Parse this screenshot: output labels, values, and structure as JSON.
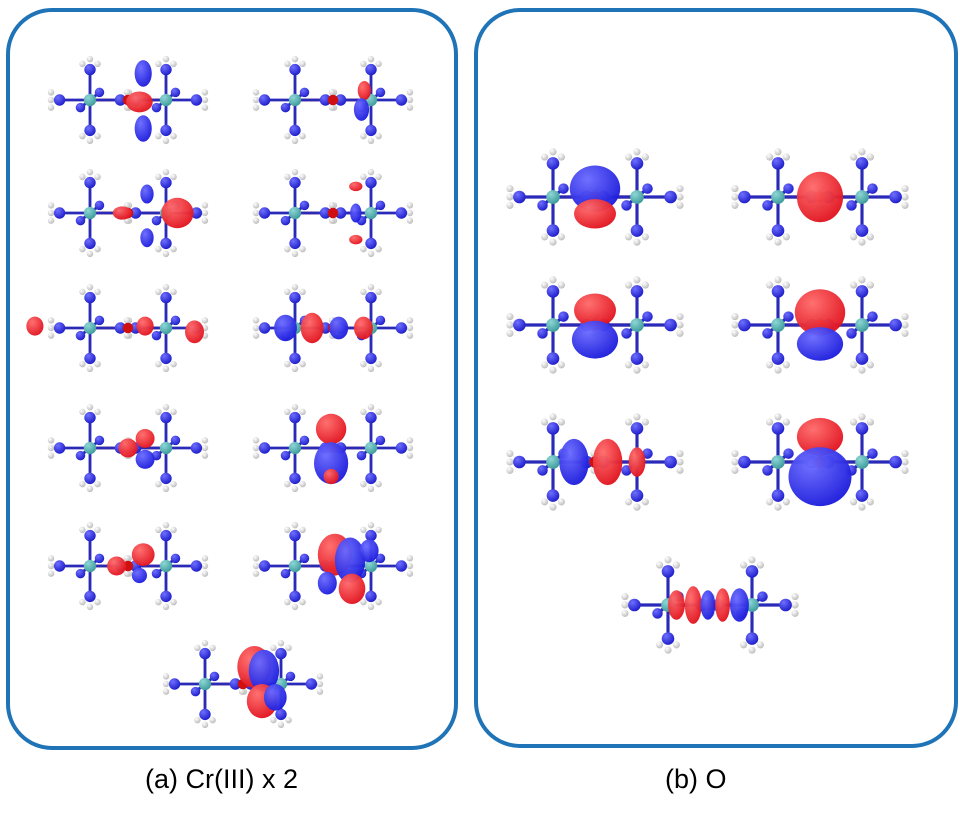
{
  "panels": [
    {
      "caption": "(a) Cr(III) x 2",
      "orbital_count": 11,
      "lobe_colors": {
        "positive": "#e0101c",
        "negative": "#1a1adb"
      }
    },
    {
      "caption": "(b) O",
      "orbital_count": 7,
      "lobe_colors": {
        "positive": "#e0101c",
        "negative": "#1a1adb"
      }
    }
  ],
  "colors": {
    "border": "#1f73b7",
    "nitrogen": "#1b1bc8",
    "hydrogen": "#f2f2f2",
    "chromium": "#3b9a9a",
    "oxygen": "#d01010"
  }
}
